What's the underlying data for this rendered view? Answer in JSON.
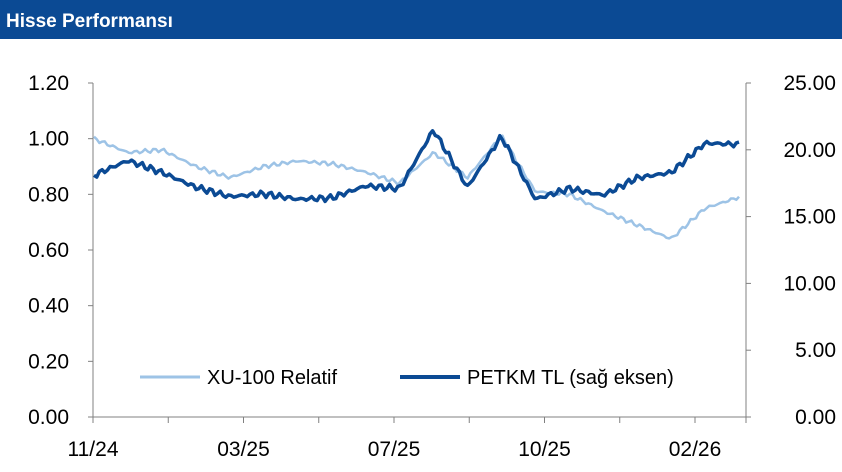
{
  "header": {
    "title": "Hisse Performansı"
  },
  "colors": {
    "header_bg": "#0b4a94",
    "relative": "#9dc3e6",
    "price": "#0b4a94"
  },
  "chart_data": {
    "type": "line",
    "x_ticks": [
      "11/24",
      "03/25",
      "07/25",
      "10/25",
      "02/26"
    ],
    "y_left": {
      "range": [
        0,
        1.2
      ],
      "ticks": [
        "0.00",
        "0.20",
        "0.40",
        "0.60",
        "0.80",
        "1.00",
        "1.20"
      ]
    },
    "y_right": {
      "range": [
        0,
        25
      ],
      "ticks": [
        "0.00",
        "5.00",
        "10.00",
        "15.00",
        "20.00",
        "25.00"
      ]
    },
    "legend_position": "bottom-center",
    "grid": false,
    "series": [
      {
        "name": "XU-100 Relatif",
        "axis": "left",
        "x": [
          "11/24",
          "12/24",
          "01/25",
          "02/25",
          "03/25",
          "04/25",
          "05/25",
          "06/25",
          "07/25",
          "08/25",
          "08/25",
          "09/25",
          "09/25",
          "10/25",
          "11/25",
          "12/25",
          "01/26",
          "02/26",
          "02/26",
          "03/26"
        ],
        "values": [
          1.0,
          0.95,
          0.96,
          0.9,
          0.86,
          0.9,
          0.92,
          0.91,
          0.88,
          0.84,
          0.95,
          0.86,
          1.01,
          0.81,
          0.8,
          0.74,
          0.69,
          0.64,
          0.75,
          0.79
        ]
      },
      {
        "name": "PETKM TL (sağ eksen)",
        "axis": "right",
        "x": [
          "11/24",
          "12/24",
          "01/25",
          "02/25",
          "03/25",
          "04/25",
          "05/25",
          "06/25",
          "07/25",
          "08/25",
          "08/25",
          "09/25",
          "09/25",
          "10/25",
          "11/25",
          "12/25",
          "01/26",
          "02/26",
          "02/26",
          "03/26"
        ],
        "values": [
          18.1,
          19.2,
          18.3,
          17.2,
          16.5,
          16.7,
          16.3,
          16.4,
          17.3,
          17.1,
          21.5,
          17.2,
          21.0,
          16.3,
          17.1,
          16.6,
          17.9,
          18.3,
          20.5,
          20.4
        ]
      }
    ]
  }
}
